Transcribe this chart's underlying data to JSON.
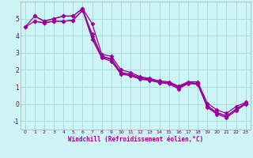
{
  "xlabel": "Windchill (Refroidissement éolien,°C)",
  "background_color": "#cef5f5",
  "grid_color": "#aadddd",
  "line_color": "#990099",
  "xlim": [
    -0.5,
    23.5
  ],
  "ylim": [
    -1.5,
    6.0
  ],
  "yticks": [
    -1,
    0,
    1,
    2,
    3,
    4,
    5
  ],
  "xticks": [
    0,
    1,
    2,
    3,
    4,
    5,
    6,
    7,
    8,
    9,
    10,
    11,
    12,
    13,
    14,
    15,
    16,
    17,
    18,
    19,
    20,
    21,
    22,
    23
  ],
  "lines": [
    {
      "x": [
        0,
        1,
        2,
        3,
        4,
        5,
        6,
        7,
        8,
        9,
        10,
        11,
        12,
        13,
        14,
        15,
        16,
        17,
        18,
        19,
        20,
        21,
        22,
        23
      ],
      "y": [
        4.5,
        5.15,
        4.85,
        5.0,
        5.15,
        5.15,
        5.6,
        4.7,
        2.9,
        2.8,
        2.0,
        1.85,
        1.6,
        1.5,
        1.35,
        1.3,
        1.05,
        1.3,
        1.3,
        0.05,
        -0.35,
        -0.55,
        -0.15,
        0.1
      ]
    },
    {
      "x": [
        0,
        1,
        2,
        3,
        4,
        5,
        6,
        7,
        8,
        9,
        10,
        11,
        12,
        13,
        14,
        15,
        16,
        17,
        18,
        19,
        20,
        21,
        22,
        23
      ],
      "y": [
        4.5,
        4.85,
        4.75,
        4.85,
        4.85,
        4.9,
        5.5,
        4.1,
        2.8,
        2.65,
        1.85,
        1.75,
        1.55,
        1.45,
        1.3,
        1.25,
        1.0,
        1.25,
        1.2,
        -0.1,
        -0.5,
        -0.7,
        -0.3,
        0.05
      ]
    },
    {
      "x": [
        1,
        2,
        3,
        4,
        5,
        6,
        7,
        8,
        9,
        10,
        11,
        12,
        13,
        14,
        15,
        16,
        17,
        18,
        19,
        20,
        21,
        22,
        23
      ],
      "y": [
        5.15,
        4.85,
        5.0,
        5.15,
        5.15,
        5.6,
        3.95,
        2.75,
        2.6,
        1.8,
        1.7,
        1.5,
        1.4,
        1.28,
        1.22,
        0.95,
        1.25,
        1.2,
        -0.15,
        -0.52,
        -0.72,
        -0.32,
        0.02
      ]
    },
    {
      "x": [
        1,
        2,
        3,
        4,
        5,
        6,
        7,
        8,
        9,
        10,
        11,
        12,
        13,
        14,
        15,
        16,
        17,
        18,
        19,
        20,
        21,
        22,
        23
      ],
      "y": [
        4.85,
        4.75,
        4.85,
        4.85,
        4.9,
        5.5,
        3.8,
        2.7,
        2.5,
        1.75,
        1.65,
        1.45,
        1.38,
        1.25,
        1.18,
        0.88,
        1.2,
        1.15,
        -0.2,
        -0.6,
        -0.8,
        -0.4,
        0.0
      ]
    }
  ],
  "marker": "D",
  "marker_size": 2.5,
  "line_width": 0.9
}
